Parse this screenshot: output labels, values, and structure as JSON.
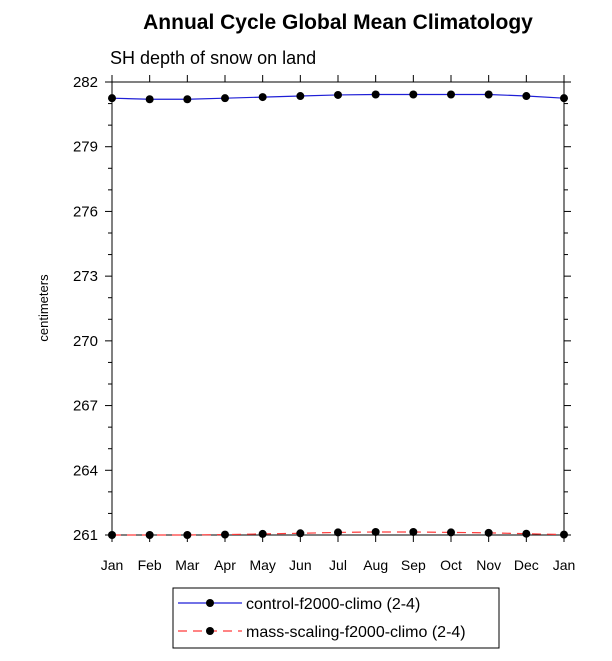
{
  "chart_data": {
    "type": "line",
    "title": "Annual Cycle Global Mean Climatology",
    "subtitle": "SH depth of snow on land",
    "ylabel": "centimeters",
    "xlabel": "",
    "ylim": [
      261,
      282
    ],
    "yticks": [
      261,
      264,
      267,
      270,
      273,
      276,
      279,
      282
    ],
    "categories": [
      "Jan",
      "Feb",
      "Mar",
      "Apr",
      "May",
      "Jun",
      "Jul",
      "Aug",
      "Sep",
      "Oct",
      "Nov",
      "Dec",
      "Jan"
    ],
    "series": [
      {
        "name": "control-f2000-climo (2-4)",
        "color": "#1f1fd6",
        "dash": "solid",
        "values": [
          281.25,
          281.2,
          281.2,
          281.25,
          281.3,
          281.35,
          281.4,
          281.42,
          281.42,
          281.42,
          281.42,
          281.35,
          281.25
        ]
      },
      {
        "name": "mass-scaling-f2000-climo (2-4)",
        "color": "#ff3b3b",
        "dash": "dashed",
        "values": [
          261.0,
          261.0,
          261.0,
          261.02,
          261.05,
          261.08,
          261.12,
          261.14,
          261.14,
          261.12,
          261.1,
          261.06,
          261.02
        ]
      }
    ],
    "grid": false,
    "legend_position": "bottom"
  }
}
